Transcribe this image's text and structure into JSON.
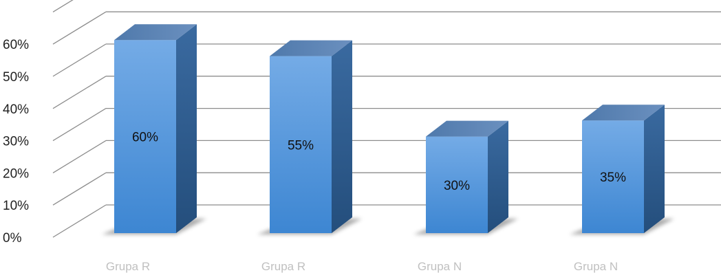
{
  "chart_data": {
    "type": "bar",
    "style": "3d-column",
    "categories": [
      "Grupa R",
      "Grupa R",
      "Grupa N",
      "Grupa N"
    ],
    "values": [
      60,
      55,
      30,
      35
    ],
    "data_labels": [
      "60%",
      "55%",
      "30%",
      "35%"
    ],
    "y_tick_labels": [
      "0%",
      "10%",
      "20%",
      "30%",
      "40%",
      "50%",
      "60%"
    ],
    "ylim": [
      0,
      70
    ],
    "grid": true,
    "legend": "none",
    "colors": {
      "bar_front_top": "#74abe6",
      "bar_front_bottom": "#3d86d2",
      "bar_side": "#2c5889",
      "bar_top": "#5d85b5",
      "gridline": "#8c8c8c",
      "category_text": "#c0c0c0"
    }
  }
}
